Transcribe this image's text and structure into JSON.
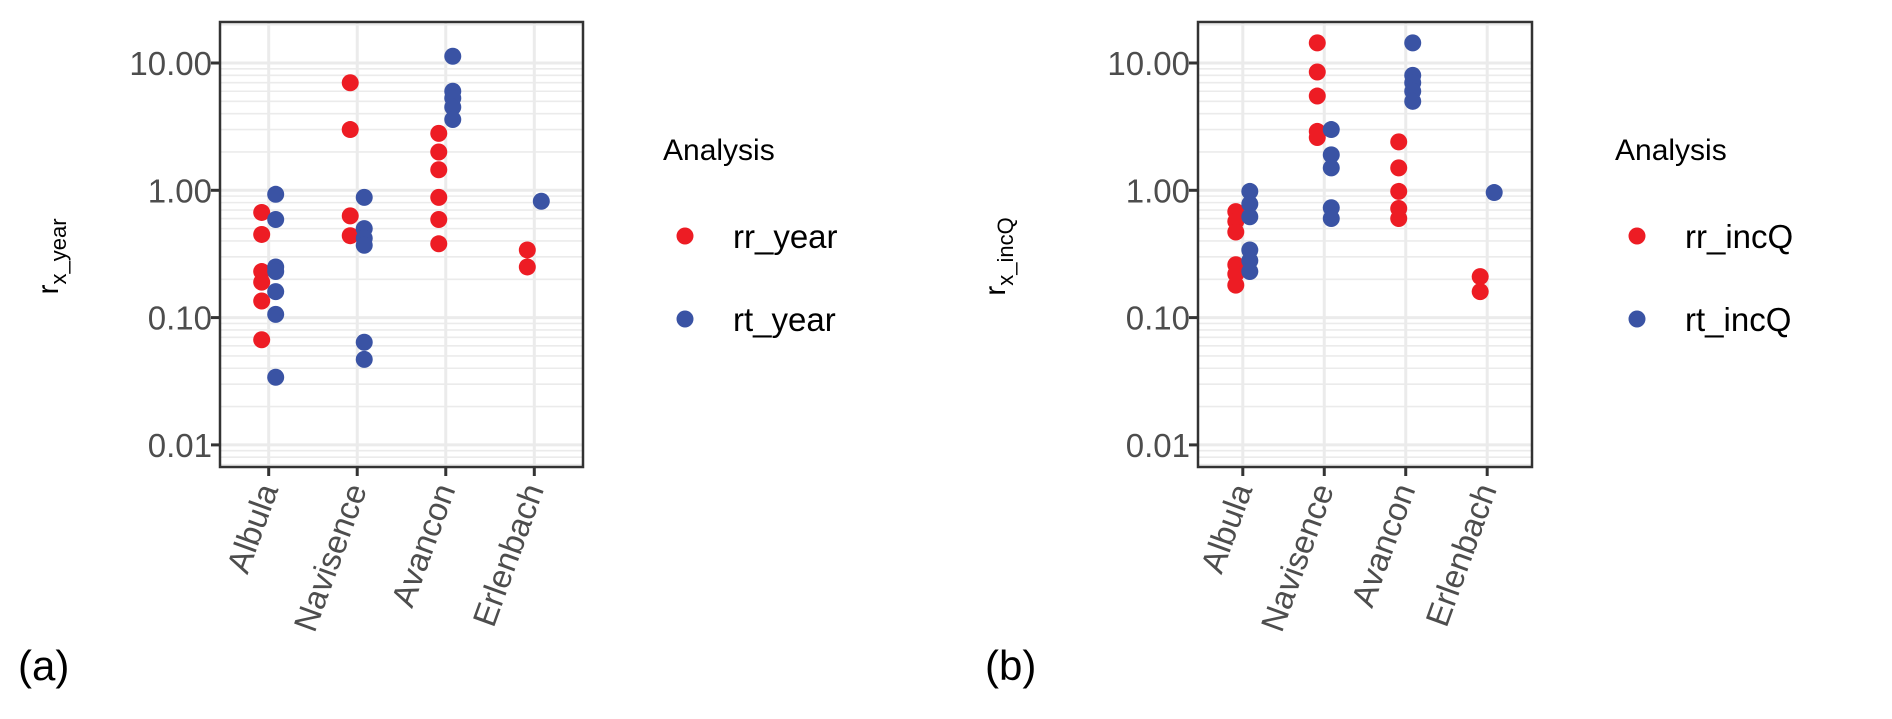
{
  "chart_data": [
    {
      "panel_tag": "(a)",
      "type": "scatter",
      "title": "",
      "xlabel": "",
      "ylabel_main": "r",
      "ylabel_sub": "x_year",
      "yscale": "log10",
      "ylim": [
        0.0075,
        21
      ],
      "yticks": [
        10,
        1,
        0.1,
        0.01
      ],
      "ytick_labels": [
        "10.00",
        "1.00",
        "0.10",
        "0.01"
      ],
      "categories": [
        "Albula",
        "Navisence",
        "Avancon",
        "Erlenbach"
      ],
      "grid": true,
      "legend": {
        "title": "Analysis",
        "position": "right"
      },
      "series": [
        {
          "name": "rr_year",
          "color": "#ED1C24",
          "points": [
            {
              "category": "Albula",
              "values": [
                0.67,
                0.45,
                0.23,
                0.19,
                0.135,
                0.067
              ]
            },
            {
              "category": "Navisence",
              "values": [
                7.0,
                3.0,
                0.63,
                0.44
              ]
            },
            {
              "category": "Avancon",
              "values": [
                2.8,
                2.0,
                1.45,
                0.88,
                0.59,
                0.38
              ]
            },
            {
              "category": "Erlenbach",
              "values": [
                0.34,
                0.25
              ]
            }
          ]
        },
        {
          "name": "rt_year",
          "color": "#3A53A4",
          "points": [
            {
              "category": "Albula",
              "values": [
                0.93,
                0.59,
                0.25,
                0.23,
                0.16,
                0.106,
                0.034
              ]
            },
            {
              "category": "Navisence",
              "values": [
                0.88,
                0.5,
                0.42,
                0.37,
                0.064,
                0.047
              ]
            },
            {
              "category": "Avancon",
              "values": [
                11.3,
                6.0,
                5.3,
                4.5,
                3.6
              ]
            },
            {
              "category": "Erlenbach",
              "values": [
                0.82
              ]
            }
          ]
        }
      ]
    },
    {
      "panel_tag": "(b)",
      "type": "scatter",
      "title": "",
      "xlabel": "",
      "ylabel_main": "r",
      "ylabel_sub": "x_incQ",
      "yscale": "log10",
      "ylim": [
        0.0075,
        21
      ],
      "yticks": [
        10,
        1,
        0.1,
        0.01
      ],
      "ytick_labels": [
        "10.00",
        "1.00",
        "0.10",
        "0.01"
      ],
      "categories": [
        "Albula",
        "Navisence",
        "Avancon",
        "Erlenbach"
      ],
      "grid": true,
      "legend": {
        "title": "Analysis",
        "position": "right"
      },
      "series": [
        {
          "name": "rr_incQ",
          "color": "#ED1C24",
          "points": [
            {
              "category": "Albula",
              "values": [
                0.68,
                0.57,
                0.47,
                0.26,
                0.22,
                0.18
              ]
            },
            {
              "category": "Navisence",
              "values": [
                14.4,
                8.5,
                5.5,
                2.9,
                2.6
              ]
            },
            {
              "category": "Avancon",
              "values": [
                2.4,
                1.5,
                0.98,
                0.72,
                0.6
              ]
            },
            {
              "category": "Erlenbach",
              "values": [
                0.21,
                0.16
              ]
            }
          ]
        },
        {
          "name": "rt_incQ",
          "color": "#3A53A4",
          "points": [
            {
              "category": "Albula",
              "values": [
                0.98,
                0.78,
                0.62,
                0.34,
                0.28,
                0.23
              ]
            },
            {
              "category": "Navisence",
              "values": [
                3.0,
                1.9,
                1.5,
                0.73,
                0.6
              ]
            },
            {
              "category": "Avancon",
              "values": [
                14.4,
                8.0,
                7.0,
                6.0,
                5.0
              ]
            },
            {
              "category": "Erlenbach",
              "values": [
                0.96
              ]
            }
          ]
        }
      ]
    }
  ]
}
